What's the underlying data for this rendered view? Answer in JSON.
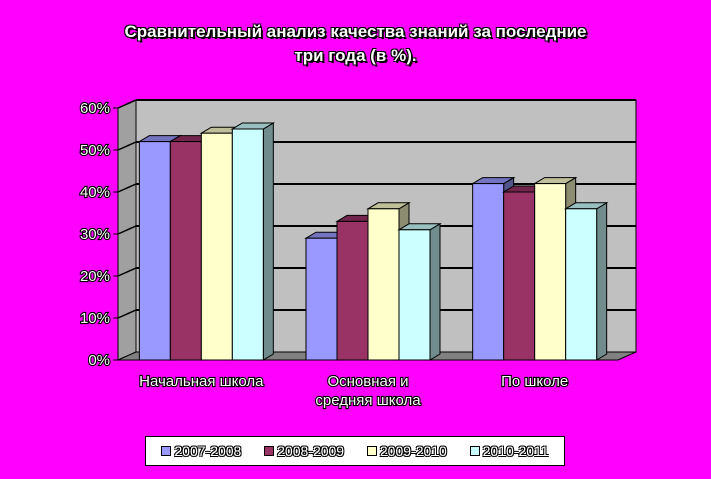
{
  "chart_data": {
    "type": "bar",
    "title_lines": [
      "Сравнительный анализ качества знаний за последние",
      "три года (в %)."
    ],
    "categories": [
      [
        "Начальная школа"
      ],
      [
        "Основная и",
        "средняя школа"
      ],
      [
        "По школе"
      ]
    ],
    "series": [
      {
        "name": "2007-2008",
        "color": "#9999ff",
        "values": [
          52,
          29,
          42
        ]
      },
      {
        "name": "2008-2009",
        "color": "#993366",
        "values": [
          52,
          33,
          40
        ]
      },
      {
        "name": "2009-2010",
        "color": "#ffffcc",
        "values": [
          54,
          36,
          42
        ]
      },
      {
        "name": "2010-2011",
        "color": "#ccffff",
        "values": [
          55,
          31,
          36
        ]
      }
    ],
    "ylim": [
      0,
      60
    ],
    "yticks": [
      "0%",
      "10%",
      "20%",
      "30%",
      "40%",
      "50%",
      "60%"
    ],
    "grid": true,
    "plot_bg": "#c0c0c0",
    "legend_position": "bottom"
  }
}
